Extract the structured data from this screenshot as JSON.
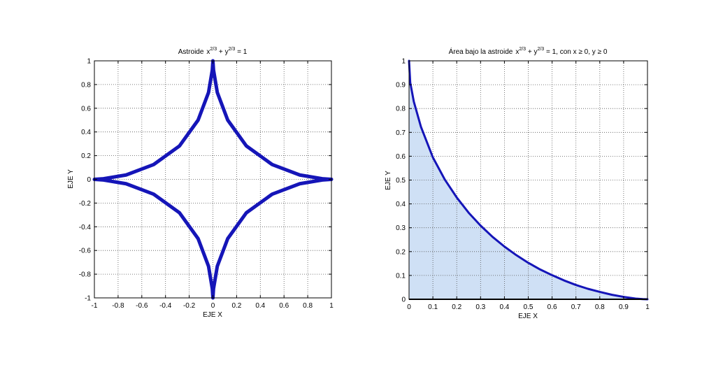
{
  "chart_data": [
    {
      "type": "line",
      "title": "Astroide",
      "title_equation": {
        "a": "x",
        "a_exp": "2/3",
        "plus": " + ",
        "b": "y",
        "b_exp": "2/3",
        "rhs": " = 1"
      },
      "xlabel": "EJE X",
      "ylabel": "EJE Y",
      "xlim": [
        -1,
        1
      ],
      "ylim": [
        -1,
        1
      ],
      "xticks": [
        -1,
        -0.8,
        -0.6,
        -0.4,
        -0.2,
        0,
        0.2,
        0.4,
        0.6,
        0.8,
        1
      ],
      "xtick_labels": [
        "-1",
        "-0.8",
        "-0.6",
        "-0.4",
        "-0.2",
        "0",
        "0.2",
        "0.4",
        "0.6",
        "0.8",
        "1"
      ],
      "yticks": [
        -1,
        -0.8,
        -0.6,
        -0.4,
        -0.2,
        0,
        0.2,
        0.4,
        0.6,
        0.8,
        1
      ],
      "ytick_labels": [
        "-1",
        "-0.8",
        "-0.6",
        "-0.4",
        "-0.2",
        "0",
        "0.2",
        "0.4",
        "0.6",
        "0.8",
        "1"
      ],
      "grid": true,
      "series": [
        {
          "color": "#1515b8",
          "x": [
            1,
            0.923,
            0.733,
            0.5,
            0.282,
            0.125,
            0.037,
            0.005,
            0,
            -0.005,
            -0.037,
            -0.125,
            -0.282,
            -0.5,
            -0.733,
            -0.923,
            -1,
            -0.923,
            -0.733,
            -0.5,
            -0.282,
            -0.125,
            -0.037,
            -0.005,
            0,
            0.005,
            0.037,
            0.125,
            0.282,
            0.5,
            0.733,
            0.923,
            1
          ],
          "y": [
            0,
            0.005,
            0.037,
            0.125,
            0.282,
            0.5,
            0.733,
            0.923,
            1,
            0.923,
            0.733,
            0.5,
            0.282,
            0.125,
            0.037,
            0.005,
            0,
            -0.005,
            -0.037,
            -0.125,
            -0.282,
            -0.5,
            -0.733,
            -0.923,
            -1,
            -0.923,
            -0.733,
            -0.5,
            -0.282,
            -0.125,
            -0.037,
            -0.005,
            0
          ]
        }
      ]
    },
    {
      "type": "area",
      "title": "Área bajo la astroide",
      "title_equation": {
        "a": "x",
        "a_exp": "2/3",
        "plus": " + ",
        "b": "y",
        "b_exp": "2/3",
        "rhs": " = 1, con x ≥ 0, y ≥ 0"
      },
      "xlabel": "EJE X",
      "ylabel": "EJE Y",
      "xlim": [
        0,
        1
      ],
      "ylim": [
        0,
        1
      ],
      "xticks": [
        0,
        0.1,
        0.2,
        0.3,
        0.4,
        0.5,
        0.6,
        0.7,
        0.8,
        0.9,
        1
      ],
      "xtick_labels": [
        "0",
        "0.1",
        "0.2",
        "0.3",
        "0.4",
        "0.5",
        "0.6",
        "0.7",
        "0.8",
        "0.9",
        "1"
      ],
      "yticks": [
        0,
        0.1,
        0.2,
        0.3,
        0.4,
        0.5,
        0.6,
        0.7,
        0.8,
        0.9,
        1
      ],
      "ytick_labels": [
        "0",
        "0.1",
        "0.2",
        "0.3",
        "0.4",
        "0.5",
        "0.6",
        "0.7",
        "0.8",
        "0.9",
        "1"
      ],
      "grid": true,
      "series": [
        {
          "color": "#1515b8",
          "fill_color": "#cfe0f5",
          "x": [
            0,
            0.005,
            0.02,
            0.05,
            0.1,
            0.15,
            0.2,
            0.25,
            0.3,
            0.35,
            0.4,
            0.45,
            0.5,
            0.55,
            0.6,
            0.65,
            0.7,
            0.75,
            0.8,
            0.85,
            0.9,
            0.95,
            0.98,
            1
          ],
          "y": [
            1,
            0.909,
            0.829,
            0.723,
            0.595,
            0.502,
            0.427,
            0.363,
            0.309,
            0.262,
            0.221,
            0.185,
            0.153,
            0.125,
            0.101,
            0.079,
            0.06,
            0.044,
            0.031,
            0.019,
            0.01,
            0.003,
            0.0006,
            0
          ]
        }
      ]
    }
  ]
}
